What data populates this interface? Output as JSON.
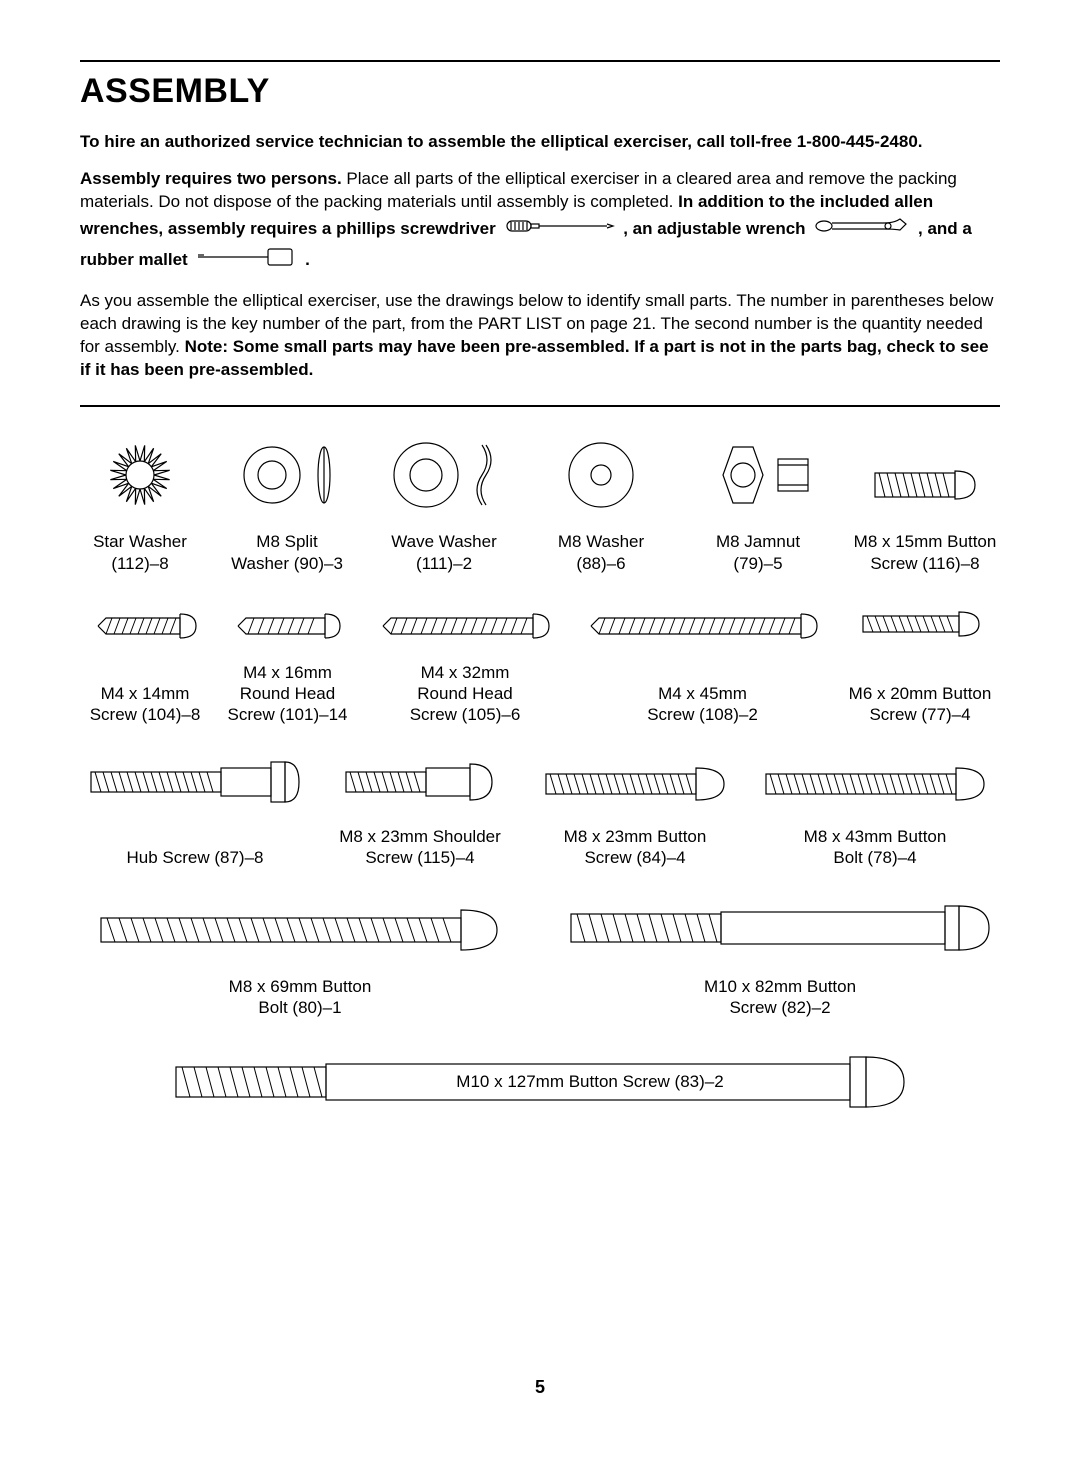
{
  "page_number": "5",
  "title": "ASSEMBLY",
  "intro_line": "To hire an authorized service technician to assemble the elliptical exerciser, call toll-free 1-800-445-2480.",
  "para2_bold_lead": "Assembly requires two persons.",
  "para2_text": " Place all parts of the elliptical exerciser in a cleared area and remove the packing materials. Do not dispose of the packing materials until assembly is completed. ",
  "para2_bold_mid": "In addition to the included allen wrenches, assembly requires a phillips screwdriver",
  "para2_after_screwdriver": " , an adjustable wrench",
  "para2_after_wrench": " , and a rubber mallet",
  "para2_end": " .",
  "para3_text": "As you assemble the elliptical exerciser, use the drawings below to identify small parts. The number in parentheses below each drawing is the key number of the part, from the PART LIST on page 21. The second number is the quantity needed for assembly. ",
  "para3_bold": "Note: Some small parts may have been pre-assembled. If a part is not in the parts bag, check to see if it has been pre-assembled.",
  "row1": [
    {
      "name": "Star Washer",
      "code": "(112)–8"
    },
    {
      "name": "M8 Split",
      "name2": "Washer (90)–3"
    },
    {
      "name": "Wave Washer",
      "code": "(111)–2"
    },
    {
      "name": "M8 Washer",
      "code": "(88)–6"
    },
    {
      "name": "M8 Jamnut",
      "code": "(79)–5"
    },
    {
      "name": "M8 x 15mm Button",
      "name2": "Screw (116)–8"
    }
  ],
  "row2": [
    {
      "name": "M4 x 14mm",
      "name2": "Screw (104)–8"
    },
    {
      "name": "M4 x 16mm",
      "name2": "Round Head",
      "name3": "Screw (101)–14"
    },
    {
      "name": "M4 x 32mm",
      "name2": "Round Head",
      "name3": "Screw (105)–6"
    },
    {
      "name": "M4 x 45mm",
      "name2": "Screw (108)–2"
    },
    {
      "name": "M6 x 20mm Button",
      "name2": "Screw (77)–4"
    }
  ],
  "row3": [
    {
      "name": "Hub Screw (87)–8"
    },
    {
      "name": "M8 x 23mm Shoulder",
      "name2": "Screw (115)–4"
    },
    {
      "name": "M8 x 23mm Button",
      "name2": "Screw (84)–4"
    },
    {
      "name": "M8 x 43mm Button",
      "name2": "Bolt (78)–4"
    }
  ],
  "row4": [
    {
      "name": "M8 x 69mm Button",
      "name2": "Bolt (80)–1"
    },
    {
      "name": "M10 x 82mm Button",
      "name2": "Screw (82)–2"
    }
  ],
  "row5": [
    {
      "name": "M10 x 127mm Button Screw (83)–2"
    }
  ],
  "style": {
    "text_color": "#000000",
    "bg_color": "#ffffff",
    "stroke": "#000000",
    "stroke_width": 1.2,
    "title_fontsize": 34,
    "body_fontsize": 17
  }
}
